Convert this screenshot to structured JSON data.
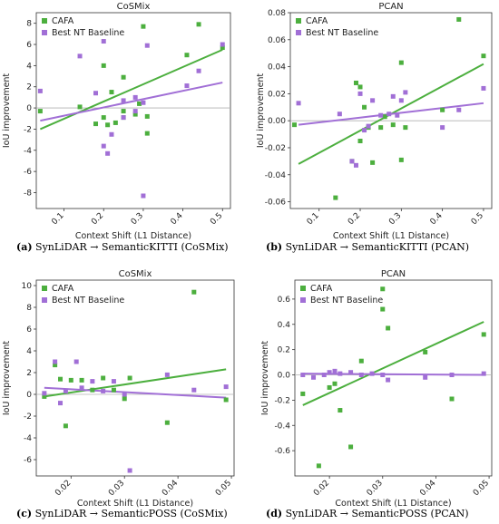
{
  "colors": {
    "cafa": "#4caf3e",
    "baseline": "#a16fd6",
    "zero_line": "#b0b0b0",
    "axis": "#333333"
  },
  "captions": [
    {
      "tag": "(a)",
      "text": "SynLiDAR → SemanticKITTI (CoSMix)"
    },
    {
      "tag": "(b)",
      "text": "SynLiDAR → SemanticKITTI (PCAN)"
    },
    {
      "tag": "(c)",
      "text": "SynLiDAR → SemanticPOSS (CoSMix)"
    },
    {
      "tag": "(d)",
      "text": "SynLiDAR → SemanticPOSS (PCAN)"
    }
  ],
  "chart_data": [
    {
      "type": "scatter",
      "title": "CoSMix",
      "xlabel": "Context Shift (L1 Distance)",
      "ylabel": "IoU improvement",
      "xlim": [
        0.03,
        0.52
      ],
      "ylim": [
        -9.5,
        9
      ],
      "xticks": [
        0.1,
        0.2,
        0.3,
        0.4,
        0.5
      ],
      "xtick_labels": [
        "0.1",
        "0.2",
        "0.3",
        "0.4",
        "0.5"
      ],
      "yticks": [
        8,
        6,
        4,
        2,
        0,
        -2,
        -4,
        -6,
        -8
      ],
      "ytick_labels": [
        "8",
        "6",
        "4",
        "2",
        "0",
        "-2",
        "-4",
        "-6",
        "-8"
      ],
      "legend_position": "top-left",
      "series": [
        {
          "name": "CAFA",
          "x": [
            0.04,
            0.14,
            0.18,
            0.2,
            0.2,
            0.21,
            0.22,
            0.23,
            0.25,
            0.25,
            0.25,
            0.28,
            0.29,
            0.3,
            0.31,
            0.31,
            0.41,
            0.44,
            0.5
          ],
          "y": [
            -0.3,
            0.1,
            -1.5,
            4.0,
            -0.9,
            -1.6,
            1.5,
            -1.4,
            2.9,
            -0.3,
            -0.9,
            -0.6,
            0.4,
            7.7,
            -0.8,
            -2.4,
            5.0,
            7.9,
            5.7
          ]
        },
        {
          "name": "Best NT Baseline",
          "x": [
            0.04,
            0.14,
            0.18,
            0.2,
            0.2,
            0.21,
            0.22,
            0.25,
            0.25,
            0.28,
            0.28,
            0.3,
            0.3,
            0.31,
            0.41,
            0.44,
            0.5
          ],
          "y": [
            1.6,
            4.9,
            1.4,
            6.3,
            -3.6,
            -4.3,
            -2.5,
            0.7,
            -0.9,
            -0.3,
            1.0,
            -8.3,
            0.5,
            5.9,
            2.1,
            3.5,
            6.0
          ]
        }
      ],
      "trend_lines": [
        {
          "series": "CAFA",
          "from": [
            0.04,
            -2.0
          ],
          "to": [
            0.5,
            5.5
          ]
        },
        {
          "series": "Best NT Baseline",
          "from": [
            0.04,
            -1.2
          ],
          "to": [
            0.5,
            2.4
          ]
        }
      ]
    },
    {
      "type": "scatter",
      "title": "PCAN",
      "xlabel": "Context Shift (L1 Distance)",
      "ylabel": "IoU improvement",
      "xlim": [
        0.03,
        0.52
      ],
      "ylim": [
        -0.065,
        0.08
      ],
      "xticks": [
        0.1,
        0.2,
        0.3,
        0.4,
        0.5
      ],
      "xtick_labels": [
        "0.1",
        "0.2",
        "0.3",
        "0.4",
        "0.5"
      ],
      "yticks": [
        0.08,
        0.06,
        0.04,
        0.02,
        0.0,
        -0.02,
        -0.04,
        -0.06
      ],
      "ytick_labels": [
        "0.08",
        "0.06",
        "0.04",
        "0.02",
        "0.00",
        "-0.02",
        "-0.04",
        "-0.06"
      ],
      "legend_position": "top-left",
      "series": [
        {
          "name": "CAFA",
          "x": [
            0.04,
            0.14,
            0.18,
            0.19,
            0.2,
            0.2,
            0.21,
            0.22,
            0.23,
            0.25,
            0.26,
            0.28,
            0.3,
            0.3,
            0.31,
            0.4,
            0.44,
            0.5
          ],
          "y": [
            -0.003,
            -0.057,
            -0.03,
            0.028,
            0.025,
            -0.015,
            0.01,
            -0.005,
            -0.031,
            -0.005,
            0.003,
            -0.003,
            0.043,
            -0.029,
            -0.005,
            0.008,
            0.075,
            0.048
          ]
        },
        {
          "name": "Best NT Baseline",
          "x": [
            0.05,
            0.15,
            0.18,
            0.19,
            0.2,
            0.21,
            0.22,
            0.23,
            0.25,
            0.27,
            0.28,
            0.29,
            0.3,
            0.31,
            0.4,
            0.44,
            0.5
          ],
          "y": [
            0.013,
            0.005,
            -0.03,
            -0.033,
            0.02,
            -0.007,
            -0.004,
            0.015,
            0.004,
            0.005,
            0.018,
            0.004,
            0.015,
            0.021,
            -0.005,
            0.008,
            0.024
          ]
        }
      ],
      "trend_lines": [
        {
          "series": "CAFA",
          "from": [
            0.05,
            -0.032
          ],
          "to": [
            0.5,
            0.042
          ]
        },
        {
          "series": "Best NT Baseline",
          "from": [
            0.05,
            -0.003
          ],
          "to": [
            0.5,
            0.013
          ]
        }
      ]
    },
    {
      "type": "scatter",
      "title": "CoSMix",
      "xlabel": "Context Shift (L1 Distance)",
      "ylabel": "IoU improvement",
      "xlim": [
        0.0135,
        0.0505
      ],
      "ylim": [
        -7.5,
        10.5
      ],
      "xticks": [
        0.02,
        0.03,
        0.04,
        0.05
      ],
      "xtick_labels": [
        "0.02",
        "0.03",
        "0.04",
        "0.05"
      ],
      "yticks": [
        10,
        8,
        6,
        4,
        2,
        0,
        -2,
        -4,
        -6
      ],
      "ytick_labels": [
        "10",
        "8",
        "6",
        "4",
        "2",
        "0",
        "-2",
        "-4",
        "-6"
      ],
      "legend_position": "top-left",
      "series": [
        {
          "name": "CAFA",
          "x": [
            0.015,
            0.017,
            0.018,
            0.019,
            0.02,
            0.022,
            0.024,
            0.026,
            0.028,
            0.03,
            0.031,
            0.038,
            0.043,
            0.049
          ],
          "y": [
            -0.2,
            2.7,
            1.4,
            -2.9,
            1.3,
            1.3,
            0.4,
            1.5,
            0.4,
            -0.4,
            1.5,
            -2.6,
            9.4,
            -0.5
          ]
        },
        {
          "name": "Best NT Baseline",
          "x": [
            0.015,
            0.017,
            0.018,
            0.019,
            0.021,
            0.022,
            0.024,
            0.026,
            0.028,
            0.03,
            0.031,
            0.038,
            0.043,
            0.049
          ],
          "y": [
            0.1,
            3.0,
            -0.8,
            0.3,
            3.0,
            0.6,
            1.2,
            0.3,
            1.2,
            0.0,
            -7.0,
            1.8,
            0.4,
            0.7
          ]
        }
      ],
      "trend_lines": [
        {
          "series": "CAFA",
          "from": [
            0.015,
            -0.2
          ],
          "to": [
            0.049,
            2.3
          ]
        },
        {
          "series": "Best NT Baseline",
          "from": [
            0.015,
            0.6
          ],
          "to": [
            0.049,
            -0.3
          ]
        }
      ]
    },
    {
      "type": "scatter",
      "title": "PCAN",
      "xlabel": "Context Shift (L1 Distance)",
      "ylabel": "IoU improvement",
      "xlim": [
        0.0135,
        0.0505
      ],
      "ylim": [
        -0.8,
        0.75
      ],
      "xticks": [
        0.02,
        0.03,
        0.04,
        0.05
      ],
      "xtick_labels": [
        "0.02",
        "0.03",
        "0.04",
        "0.05"
      ],
      "yticks": [
        0.6,
        0.4,
        0.2,
        0.0,
        -0.2,
        -0.4,
        -0.6
      ],
      "ytick_labels": [
        "0.6",
        "0.4",
        "0.2",
        "0.0",
        "-0.2",
        "-0.4",
        "-0.6"
      ],
      "legend_position": "top-left",
      "series": [
        {
          "name": "CAFA",
          "x": [
            0.015,
            0.018,
            0.02,
            0.021,
            0.022,
            0.024,
            0.026,
            0.03,
            0.03,
            0.031,
            0.038,
            0.043,
            0.049
          ],
          "y": [
            -0.15,
            -0.72,
            -0.1,
            -0.07,
            -0.28,
            -0.57,
            0.11,
            0.68,
            0.52,
            0.37,
            0.18,
            -0.19,
            0.32
          ]
        },
        {
          "name": "Best NT Baseline",
          "x": [
            0.015,
            0.017,
            0.019,
            0.02,
            0.021,
            0.022,
            0.024,
            0.026,
            0.028,
            0.03,
            0.031,
            0.038,
            0.043,
            0.049
          ],
          "y": [
            0.0,
            -0.02,
            0.0,
            0.02,
            0.03,
            0.01,
            0.02,
            0.0,
            0.01,
            0.0,
            -0.04,
            -0.02,
            0.0,
            0.01
          ]
        }
      ],
      "trend_lines": [
        {
          "series": "CAFA",
          "from": [
            0.015,
            -0.24
          ],
          "to": [
            0.049,
            0.42
          ]
        },
        {
          "series": "Best NT Baseline",
          "from": [
            0.015,
            0.01
          ],
          "to": [
            0.049,
            0.0
          ]
        }
      ]
    }
  ]
}
